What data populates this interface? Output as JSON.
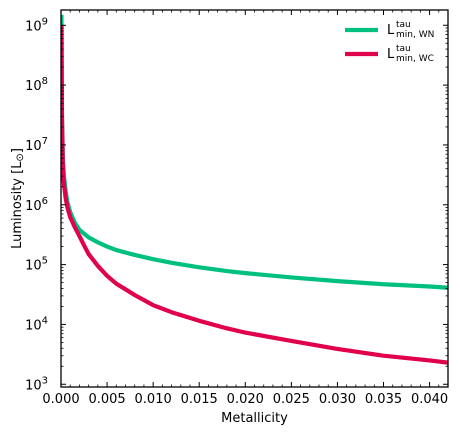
{
  "chart_data": {
    "type": "line",
    "xlabel": "Metallicity",
    "ylabel": "Luminosity [L",
    "ylabel_symbol": "⊙",
    "ylabel_close": "]",
    "xlim": [
      0.0,
      0.042
    ],
    "ylim": [
      900,
      1800000000
    ],
    "y_scale": "log",
    "x_ticks": [
      0.0,
      0.005,
      0.01,
      0.015,
      0.02,
      0.025,
      0.03,
      0.035,
      0.04
    ],
    "x_tick_labels": [
      "0.000",
      "0.005",
      "0.010",
      "0.015",
      "0.020",
      "0.025",
      "0.030",
      "0.035",
      "0.040"
    ],
    "y_ticks": [
      1000,
      10000,
      100000,
      1000000,
      10000000,
      100000000,
      1000000000
    ],
    "y_tick_labels": [
      {
        "base": "10",
        "exp": "3"
      },
      {
        "base": "10",
        "exp": "4"
      },
      {
        "base": "10",
        "exp": "5"
      },
      {
        "base": "10",
        "exp": "6"
      },
      {
        "base": "10",
        "exp": "7"
      },
      {
        "base": "10",
        "exp": "8"
      },
      {
        "base": "10",
        "exp": "9"
      }
    ],
    "grid": false,
    "legend_position": "top-right",
    "series": [
      {
        "name": "L",
        "name_sup": "tau",
        "name_sub": "min, WN",
        "color": "#00c080",
        "points": [
          [
            5e-05,
            1500000000
          ],
          [
            0.0001,
            40000000
          ],
          [
            0.0002,
            6000000
          ],
          [
            0.0003,
            3200000
          ],
          [
            0.0005,
            1700000
          ],
          [
            0.0007,
            1100000
          ],
          [
            0.001,
            750000
          ],
          [
            0.0015,
            500000
          ],
          [
            0.002,
            380000
          ],
          [
            0.003,
            285000
          ],
          [
            0.004,
            235000
          ],
          [
            0.005,
            200000
          ],
          [
            0.006,
            175000
          ],
          [
            0.008,
            145000
          ],
          [
            0.01,
            123000
          ],
          [
            0.012,
            107000
          ],
          [
            0.015,
            90000
          ],
          [
            0.018,
            78000
          ],
          [
            0.02,
            72000
          ],
          [
            0.025,
            61000
          ],
          [
            0.03,
            53000
          ],
          [
            0.035,
            47000
          ],
          [
            0.04,
            43000
          ],
          [
            0.042,
            41000
          ]
        ]
      },
      {
        "name": "L",
        "name_sup": "tau",
        "name_sub": "min, WC",
        "color": "#e0004d",
        "points": [
          [
            5e-05,
            1000000000
          ],
          [
            0.0001,
            30000000
          ],
          [
            0.0002,
            4500000
          ],
          [
            0.0003,
            2400000
          ],
          [
            0.0005,
            1300000
          ],
          [
            0.0007,
            900000
          ],
          [
            0.001,
            620000
          ],
          [
            0.0015,
            420000
          ],
          [
            0.002,
            300000
          ],
          [
            0.0025,
            210000
          ],
          [
            0.003,
            150000
          ],
          [
            0.004,
            95000
          ],
          [
            0.005,
            65000
          ],
          [
            0.006,
            48000
          ],
          [
            0.008,
            31000
          ],
          [
            0.01,
            21000
          ],
          [
            0.012,
            16000
          ],
          [
            0.015,
            11500
          ],
          [
            0.018,
            8600
          ],
          [
            0.02,
            7300
          ],
          [
            0.025,
            5300
          ],
          [
            0.03,
            3900
          ],
          [
            0.035,
            3000
          ],
          [
            0.04,
            2500
          ],
          [
            0.042,
            2300
          ]
        ]
      }
    ]
  }
}
